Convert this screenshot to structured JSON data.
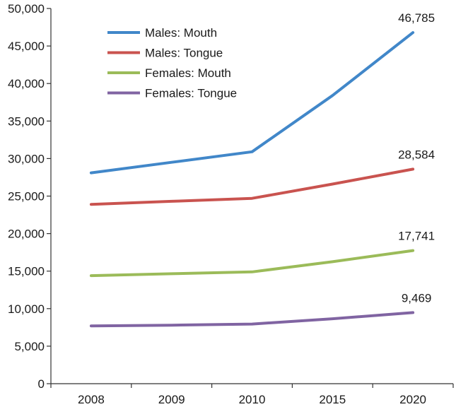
{
  "chart_data": {
    "type": "line",
    "categories": [
      "2008",
      "2009",
      "2010",
      "2015",
      "2020"
    ],
    "ylim": [
      0,
      50000
    ],
    "yticks": [
      0,
      5000,
      10000,
      15000,
      20000,
      25000,
      30000,
      35000,
      40000,
      45000,
      50000
    ],
    "ytick_labels": [
      "0",
      "5,000",
      "10,000",
      "15,000",
      "20,000",
      "25,000",
      "30,000",
      "35,000",
      "40,000",
      "45,000",
      "50,000"
    ],
    "grid": false,
    "legend_position": "top-left",
    "series": [
      {
        "name": "Males: Mouth",
        "color": "#4187c9",
        "values": [
          28100,
          29500,
          30900,
          38400,
          46785
        ],
        "end_label": "46,785"
      },
      {
        "name": "Males: Tongue",
        "color": "#c9534f",
        "values": [
          23900,
          24300,
          24700,
          26600,
          28584
        ],
        "end_label": "28,584"
      },
      {
        "name": "Females: Mouth",
        "color": "#9bbb59",
        "values": [
          14400,
          14650,
          14900,
          16250,
          17741
        ],
        "end_label": "17,741"
      },
      {
        "name": "Females: Tongue",
        "color": "#8064a2",
        "values": [
          7700,
          7800,
          7950,
          8650,
          9469
        ],
        "end_label": "9,469"
      }
    ]
  }
}
